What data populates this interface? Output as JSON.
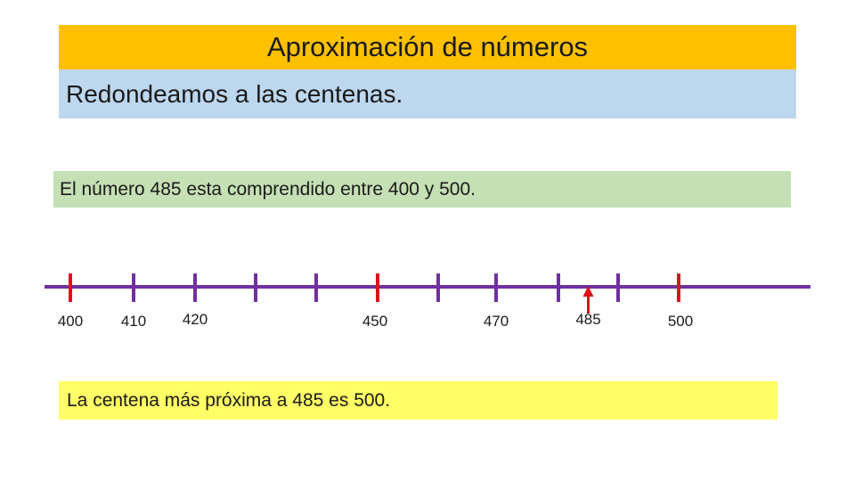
{
  "header": {
    "title": "Aproximación de números",
    "subtitle": "Redondeamos a las centenas."
  },
  "statement": "El número 485 esta comprendido entre 400 y 500.",
  "number_line": {
    "ticks": [
      {
        "value": 400,
        "label": "400",
        "color": "#e0101a"
      },
      {
        "value": 410,
        "label": "410",
        "color": "#7030a0"
      },
      {
        "value": 420,
        "label": "420",
        "color": "#7030a0"
      },
      {
        "value": 430,
        "label": "",
        "color": "#7030a0"
      },
      {
        "value": 440,
        "label": "",
        "color": "#7030a0"
      },
      {
        "value": 450,
        "label": "450",
        "color": "#e0101a"
      },
      {
        "value": 460,
        "label": "",
        "color": "#7030a0"
      },
      {
        "value": 470,
        "label": "470",
        "color": "#7030a0"
      },
      {
        "value": 480,
        "label": "",
        "color": "#7030a0"
      },
      {
        "value": 490,
        "label": "",
        "color": "#7030a0"
      },
      {
        "value": 500,
        "label": "500",
        "color": "#e0101a"
      }
    ],
    "marker": {
      "value": 485,
      "label": "485",
      "color": "#e0101a"
    },
    "line_color": "#7030a0"
  },
  "conclusion": "La centena más próxima a 485 es 500.",
  "colors": {
    "title_band": "#ffc000",
    "subtitle_band": "#bdd7ee",
    "statement_band": "#c5e0b4",
    "conclusion_band": "#ffff66"
  }
}
